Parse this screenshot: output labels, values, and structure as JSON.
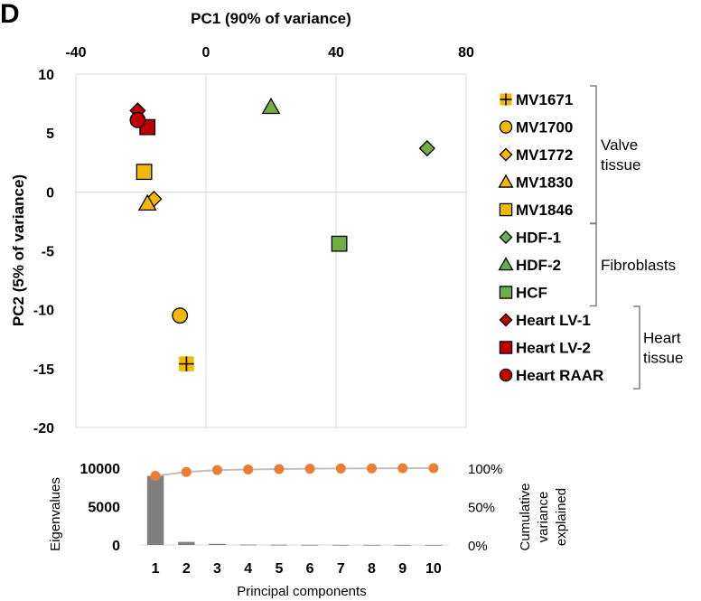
{
  "panel_label": "D",
  "chart_data": [
    {
      "type": "scatter",
      "xlabel": "PC1 (90% of variance)",
      "ylabel": "PC2 (5% of variance)",
      "xlim": [
        -40,
        80
      ],
      "ylim": [
        -20,
        10
      ],
      "xticks": [
        -40,
        0,
        40,
        80
      ],
      "yticks": [
        10,
        5,
        0,
        -5,
        -10,
        -15,
        -20
      ],
      "grid": "vertical lines at x ticks, horizontal axis line at y=0",
      "x_axis_position": "top",
      "series": [
        {
          "name": "MV1671",
          "marker": "plus-square",
          "color": "#F5B800",
          "points": [
            [
              -6,
              -14.6
            ]
          ]
        },
        {
          "name": "MV1700",
          "marker": "circle",
          "color": "#F5B800",
          "points": [
            [
              -8,
              -10.5
            ]
          ]
        },
        {
          "name": "MV1772",
          "marker": "diamond",
          "color": "#F5B800",
          "points": [
            [
              -16,
              -0.6
            ]
          ]
        },
        {
          "name": "MV1830",
          "marker": "triangle",
          "color": "#F5B800",
          "points": [
            [
              -18,
              -1
            ]
          ]
        },
        {
          "name": "MV1846",
          "marker": "square",
          "color": "#F5B800",
          "points": [
            [
              -19,
              1.7
            ]
          ]
        },
        {
          "name": "HDF-1",
          "marker": "diamond",
          "color": "#70AD47",
          "points": [
            [
              68,
              3.7
            ]
          ]
        },
        {
          "name": "HDF-2",
          "marker": "triangle",
          "color": "#70AD47",
          "points": [
            [
              20,
              7.2
            ]
          ]
        },
        {
          "name": "HCF",
          "marker": "square",
          "color": "#70AD47",
          "points": [
            [
              41,
              -4.4
            ]
          ]
        },
        {
          "name": "Heart LV-1",
          "marker": "diamond",
          "color": "#C00000",
          "points": [
            [
              -21,
              6.9
            ]
          ]
        },
        {
          "name": "Heart LV-2",
          "marker": "square",
          "color": "#C00000",
          "points": [
            [
              -18,
              5.5
            ]
          ]
        },
        {
          "name": "Heart RAAR",
          "marker": "circle",
          "color": "#C00000",
          "points": [
            [
              -21,
              6.1
            ]
          ]
        }
      ],
      "legend_groups": [
        {
          "label_lines": [
            "Valve",
            "tissue"
          ],
          "members": [
            "MV1671",
            "MV1700",
            "MV1772",
            "MV1830",
            "MV1846"
          ]
        },
        {
          "label_lines": [
            "Fibroblasts"
          ],
          "members": [
            "HDF-1",
            "HDF-2",
            "HCF"
          ]
        },
        {
          "label_lines": [
            "Heart",
            "tissue"
          ],
          "members": [
            "Heart LV-1",
            "Heart LV-2",
            "Heart RAAR"
          ]
        }
      ],
      "legend_placement": "right"
    },
    {
      "type": "bar+line",
      "xlabel": "Principal components",
      "categories": [
        1,
        2,
        3,
        4,
        5,
        6,
        7,
        8,
        9,
        10
      ],
      "bars": {
        "axis": "left",
        "ylabel": "Eigenvalues",
        "ylim": [
          0,
          10000
        ],
        "yticks": [
          0,
          5000,
          10000
        ],
        "values": [
          9000,
          400,
          150,
          50,
          30,
          20,
          15,
          10,
          8,
          5
        ],
        "color": "#7F7F7F"
      },
      "line": {
        "axis": "right",
        "ylabel_lines": [
          "Cumulative",
          "variance",
          "explained"
        ],
        "ylim": [
          0,
          100
        ],
        "yticks": [
          "0%",
          "50%",
          "100%"
        ],
        "values": [
          90,
          95,
          97.5,
          98.3,
          98.8,
          99.2,
          99.5,
          99.7,
          99.9,
          100
        ],
        "color": "#ED7D31",
        "line_color": "#BFBFBF"
      }
    }
  ]
}
